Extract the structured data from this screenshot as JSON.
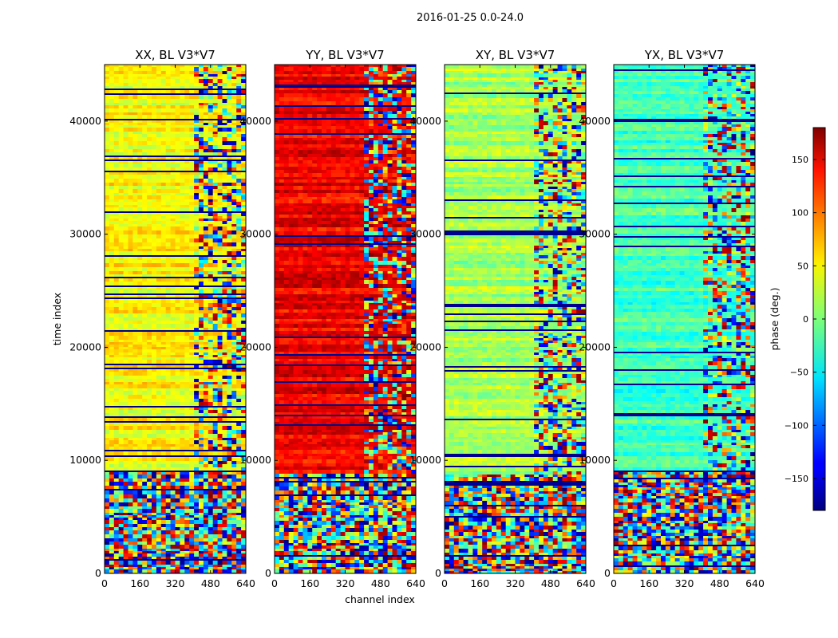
{
  "figure": {
    "suptitle": "2016-01-25 0.0-24.0"
  },
  "chart_data": {
    "type": "heatmap",
    "suptitle": "2016-01-25 0.0-24.0",
    "xlabel": "channel index",
    "ylabel": "time index",
    "xlim": [
      0,
      640
    ],
    "ylim": [
      0,
      45000
    ],
    "xticks": [
      0,
      160,
      320,
      480,
      640
    ],
    "yticks": [
      0,
      10000,
      20000,
      30000,
      40000
    ],
    "colormap": "jet",
    "panels": [
      {
        "title": "XX, BL V3*V7",
        "dominant_phase_deg": 45
      },
      {
        "title": "YY, BL V3*V7",
        "dominant_phase_deg": 140
      },
      {
        "title": "XY, BL V3*V7",
        "dominant_phase_deg": 15
      },
      {
        "title": "YX, BL V3*V7",
        "dominant_phase_deg": -20
      }
    ],
    "colorbar": {
      "label": "phase (deg.)",
      "range": [
        -180,
        180
      ],
      "ticks": [
        -150,
        -100,
        -50,
        0,
        50,
        100,
        150
      ]
    }
  }
}
